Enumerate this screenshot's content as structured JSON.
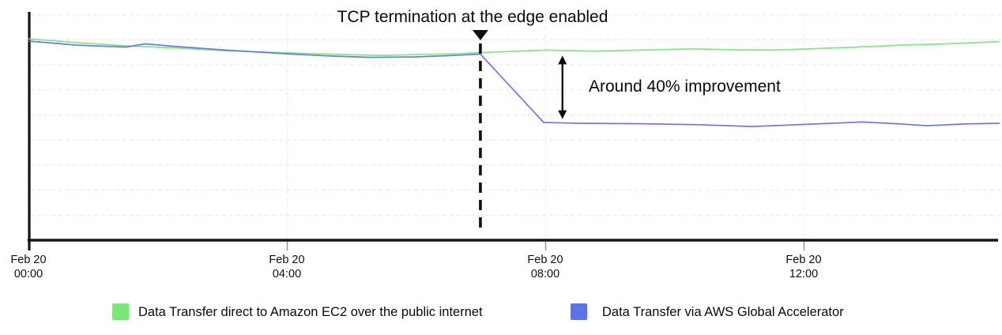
{
  "chart_data": {
    "type": "line",
    "title": "",
    "grid": true,
    "legend_position": "bottom",
    "background_color": "#ffffff",
    "axis_color": "#141414",
    "gridline_color": "#e7e7e7",
    "tick_color": "#8f8f8f",
    "x_axis": {
      "label": "",
      "unit": "time of day on Feb 20",
      "range_hours": [
        0,
        15.07
      ],
      "ticks": [
        {
          "date": "Feb 20",
          "time": "00:00",
          "hour": 0
        },
        {
          "date": "Feb 20",
          "time": "04:00",
          "hour": 4
        },
        {
          "date": "Feb 20",
          "time": "08:00",
          "hour": 8
        },
        {
          "date": "Feb 20",
          "time": "12:00",
          "hour": 12
        }
      ]
    },
    "y_axis": {
      "label": "",
      "tick_labels": [],
      "note": "y axis has no numeric labels; values below are in gridline units (1 unit = one horizontal gridline spacing, baseline = x axis)",
      "range_units": [
        0,
        9.6
      ],
      "gridline_units": [
        1,
        2,
        3,
        4,
        5,
        6,
        7,
        8,
        9
      ]
    },
    "series": [
      {
        "name": "Data Transfer direct to Amazon EC2 over the public internet",
        "color": "#72e572",
        "points": [
          [
            0,
            8.04
          ],
          [
            0.74,
            7.89
          ],
          [
            1.5,
            7.76
          ],
          [
            2.25,
            7.68
          ],
          [
            3.0,
            7.57
          ],
          [
            4.0,
            7.48
          ],
          [
            5.0,
            7.4
          ],
          [
            5.5,
            7.38
          ],
          [
            6.0,
            7.41
          ],
          [
            6.5,
            7.44
          ],
          [
            7.0,
            7.49
          ],
          [
            7.5,
            7.54
          ],
          [
            8.0,
            7.59
          ],
          [
            8.75,
            7.55
          ],
          [
            9.5,
            7.59
          ],
          [
            10.25,
            7.64
          ],
          [
            11.0,
            7.6
          ],
          [
            11.5,
            7.59
          ],
          [
            12.0,
            7.63
          ],
          [
            12.5,
            7.68
          ],
          [
            13.0,
            7.73
          ],
          [
            13.5,
            7.79
          ],
          [
            14.0,
            7.82
          ],
          [
            14.5,
            7.87
          ],
          [
            15.02,
            7.93
          ]
        ]
      },
      {
        "name": "Data Transfer via AWS Global Accelerator",
        "color": "#5f6ce2",
        "points": [
          [
            0,
            7.95
          ],
          [
            0.74,
            7.79
          ],
          [
            1.5,
            7.71
          ],
          [
            1.8,
            7.84
          ],
          [
            2.25,
            7.74
          ],
          [
            3.0,
            7.6
          ],
          [
            4.0,
            7.44
          ],
          [
            4.7,
            7.35
          ],
          [
            5.3,
            7.3
          ],
          [
            6.0,
            7.32
          ],
          [
            6.5,
            7.37
          ],
          [
            6.99,
            7.43
          ],
          [
            7.97,
            4.7
          ],
          [
            8.5,
            4.67
          ],
          [
            9.5,
            4.65
          ],
          [
            10.4,
            4.61
          ],
          [
            11.2,
            4.54
          ],
          [
            12.0,
            4.62
          ],
          [
            12.9,
            4.72
          ],
          [
            13.5,
            4.64
          ],
          [
            13.9,
            4.57
          ],
          [
            14.5,
            4.64
          ],
          [
            15.02,
            4.67
          ]
        ]
      }
    ],
    "event": {
      "label": "TCP termination at the edge enabled",
      "hour": 6.99,
      "marker": "down-triangle with vertical dashed line"
    },
    "improvement": {
      "label": "Around 40% improvement",
      "approx_percent": 40,
      "arrow_hour": 8.26,
      "arrow_top_unit": 7.37,
      "arrow_bottom_unit": 4.84
    }
  },
  "legend": [
    {
      "label": "Data Transfer direct to Amazon EC2 over the public internet",
      "swatch_color": "#79e879"
    },
    {
      "label": "Data Transfer via AWS Global Accelerator",
      "swatch_color": "#5b74e8"
    }
  ]
}
